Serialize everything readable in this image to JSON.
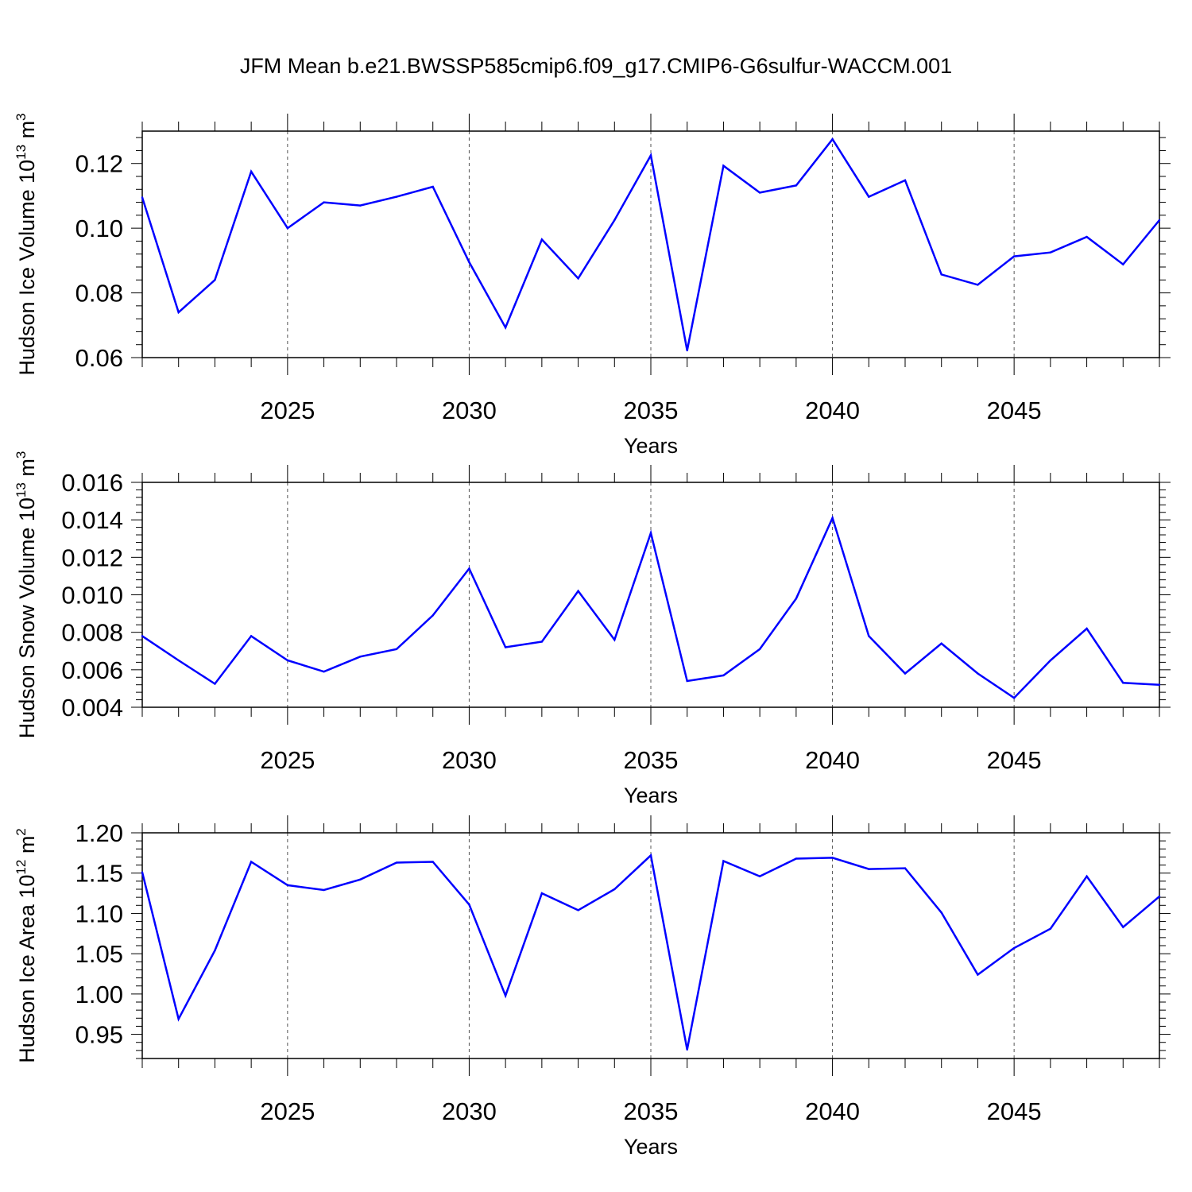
{
  "figure": {
    "title": "JFM Mean b.e21.BWSSP585cmip6.f09_g17.CMIP6-G6sulfur-WACCM.001"
  },
  "colors": {
    "line": "#0000ff",
    "axis": "#000000",
    "grid": "#555555",
    "background": "#ffffff"
  },
  "chart_data": [
    {
      "type": "line",
      "title": "JFM Mean b.e21.BWSSP585cmip6.f09_g17.CMIP6-G6sulfur-WACCM.001",
      "ylabel_main": "Hudson Ice Volume 10",
      "ylabel_sup": "13",
      "ylabel_unit": "m",
      "ylabel_unit_sup": "3",
      "xlabel": "Years",
      "xlim": [
        2021,
        2049
      ],
      "ylim": [
        0.06,
        0.13
      ],
      "yticks": [
        0.06,
        0.08,
        0.1,
        0.12
      ],
      "ytick_labels": [
        "0.06",
        "0.08",
        "0.10",
        "0.12"
      ],
      "xticks": [
        2025,
        2030,
        2035,
        2040,
        2045
      ],
      "xtick_labels": [
        "2025",
        "2030",
        "2035",
        "2040",
        "2045"
      ],
      "x": [
        2021,
        2022,
        2023,
        2024,
        2025,
        2026,
        2027,
        2028,
        2029,
        2030,
        2031,
        2032,
        2033,
        2034,
        2035,
        2036,
        2037,
        2038,
        2039,
        2040,
        2041,
        2042,
        2043,
        2044,
        2045,
        2046,
        2047,
        2048,
        2049
      ],
      "values": [
        0.1095,
        0.074,
        0.084,
        0.1175,
        0.1,
        0.108,
        0.107,
        0.1097,
        0.1128,
        0.0895,
        0.0693,
        0.0965,
        0.0845,
        0.1025,
        0.1225,
        0.0622,
        0.1193,
        0.111,
        0.1132,
        0.1275,
        0.1097,
        0.1148,
        0.0857,
        0.0825,
        0.0913,
        0.0925,
        0.0973,
        0.0888,
        0.1025
      ],
      "grid": "dashed vertical at major x ticks"
    },
    {
      "type": "line",
      "ylabel_main": "Hudson Snow Volume 10",
      "ylabel_sup": "13",
      "ylabel_unit": "m",
      "ylabel_unit_sup": "3",
      "xlabel": "Years",
      "xlim": [
        2021,
        2049
      ],
      "ylim": [
        0.004,
        0.016
      ],
      "yticks": [
        0.004,
        0.006,
        0.008,
        0.01,
        0.012,
        0.014,
        0.016
      ],
      "ytick_labels": [
        "0.004",
        "0.006",
        "0.008",
        "0.010",
        "0.012",
        "0.014",
        "0.016"
      ],
      "xticks": [
        2025,
        2030,
        2035,
        2040,
        2045
      ],
      "xtick_labels": [
        "2025",
        "2030",
        "2035",
        "2040",
        "2045"
      ],
      "x": [
        2021,
        2022,
        2023,
        2024,
        2025,
        2026,
        2027,
        2028,
        2029,
        2030,
        2031,
        2032,
        2033,
        2034,
        2035,
        2036,
        2037,
        2038,
        2039,
        2040,
        2041,
        2042,
        2043,
        2044,
        2045,
        2046,
        2047,
        2048,
        2049
      ],
      "values": [
        0.0078,
        0.0065,
        0.00525,
        0.0078,
        0.0065,
        0.0059,
        0.0067,
        0.0071,
        0.0089,
        0.0114,
        0.0072,
        0.0075,
        0.0102,
        0.0076,
        0.0133,
        0.0054,
        0.0057,
        0.0071,
        0.0098,
        0.0141,
        0.0078,
        0.0058,
        0.0074,
        0.0058,
        0.0045,
        0.0065,
        0.0082,
        0.0053,
        0.0052
      ],
      "grid": "dashed vertical at major x ticks"
    },
    {
      "type": "line",
      "ylabel_main": "Hudson Ice Area 10",
      "ylabel_sup": "12",
      "ylabel_unit": "m",
      "ylabel_unit_sup": "2",
      "xlabel": "Years",
      "xlim": [
        2021,
        2049
      ],
      "ylim": [
        0.92,
        1.2
      ],
      "yticks": [
        0.95,
        1.0,
        1.05,
        1.1,
        1.15,
        1.2
      ],
      "ytick_labels": [
        "0.95",
        "1.00",
        "1.05",
        "1.10",
        "1.15",
        "1.20"
      ],
      "xticks": [
        2025,
        2030,
        2035,
        2040,
        2045
      ],
      "xtick_labels": [
        "2025",
        "2030",
        "2035",
        "2040",
        "2045"
      ],
      "x": [
        2021,
        2022,
        2023,
        2024,
        2025,
        2026,
        2027,
        2028,
        2029,
        2030,
        2031,
        2032,
        2033,
        2034,
        2035,
        2036,
        2037,
        2038,
        2039,
        2040,
        2041,
        2042,
        2043,
        2044,
        2045,
        2046,
        2047,
        2048,
        2049
      ],
      "values": [
        1.151,
        0.969,
        1.054,
        1.164,
        1.135,
        1.129,
        1.142,
        1.163,
        1.164,
        1.111,
        0.998,
        1.125,
        1.104,
        1.13,
        1.172,
        0.931,
        1.165,
        1.146,
        1.168,
        1.169,
        1.155,
        1.156,
        1.101,
        1.024,
        1.057,
        1.081,
        1.146,
        1.083,
        1.121
      ],
      "grid": "dashed vertical at major x ticks"
    }
  ]
}
